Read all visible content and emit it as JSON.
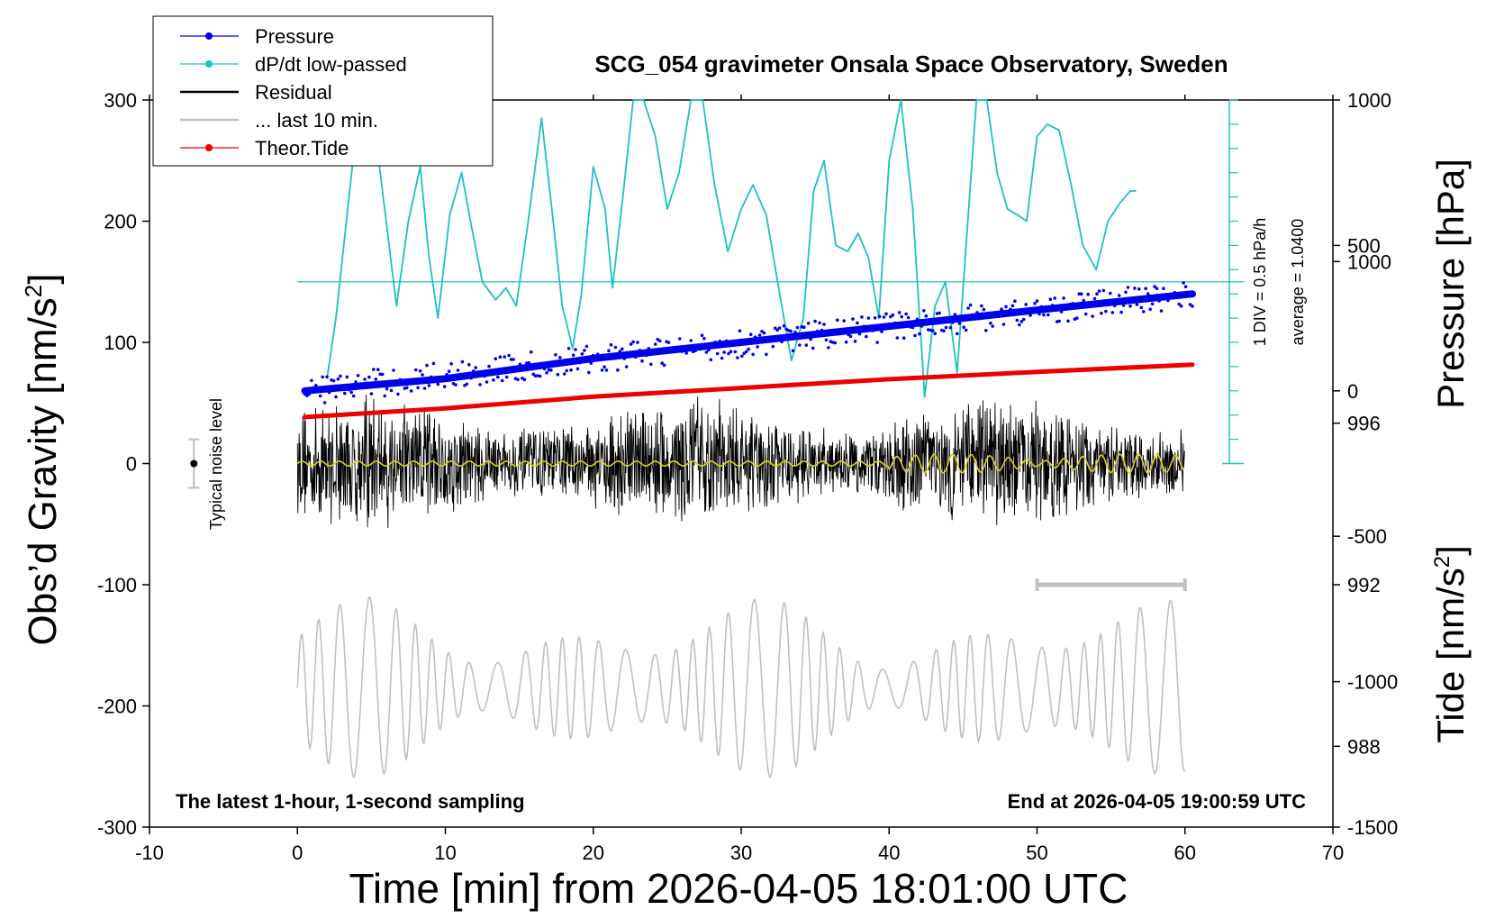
{
  "chart_data": {
    "type": "line",
    "title": "SCG_054 gravimeter Onsala Space Observatory, Sweden",
    "xlabel": "Time [min] from 2026-04-05 18:01:00 UTC",
    "ylabel_left_main": "Obs’d Gravity [nm/s",
    "ylabel_left_sup": "2",
    "ylabel_left_end": "]",
    "ylabel_right_top": "Pressure [hPa]",
    "ylabel_right_bottom_main": "Tide [nm/s",
    "ylabel_right_bottom_sup": "2",
    "ylabel_right_bottom_end": "]",
    "xlim": [
      -10,
      70
    ],
    "ylim": [
      -300,
      300
    ],
    "x_ticks": [
      "-10",
      "0",
      "10",
      "20",
      "30",
      "40",
      "50",
      "60",
      "70"
    ],
    "y_ticks_left": [
      "-300",
      "-200",
      "-100",
      "0",
      "100",
      "200",
      "300"
    ],
    "y_ticks_pressure": [
      "988",
      "992",
      "996",
      "1000"
    ],
    "y_ticks_tide": [
      "-1500",
      "-1000",
      "-500",
      "0",
      "500",
      "1000"
    ],
    "pressure_range_hpa": [
      986,
      1004
    ],
    "tide_range_nms2": [
      -1500,
      1000
    ],
    "bottom_left_note": "The latest 1-hour, 1-second sampling",
    "bottom_right_note": "End at 2026-04-05 19:00:59 UTC",
    "noise_label": "Typical noise level",
    "scale_note_1": "1 DIV = 0.5 hPa/h",
    "scale_note_2": "average = 1.0400",
    "legend": [
      {
        "label": "Pressure",
        "color": "#0000ee",
        "marker": "dot"
      },
      {
        "label": "dP/dt low-passed",
        "color": "#20c0c0",
        "marker": "dot"
      },
      {
        "label": "Residual",
        "color": "#000000",
        "marker": "line"
      },
      {
        "label": "... last 10 min.",
        "color": "#c0c0c0",
        "marker": "line"
      },
      {
        "label": "Theor.Tide",
        "color": "#ee0000",
        "marker": "dot"
      }
    ],
    "series": [
      {
        "name": "Pressure",
        "color": "#0000ee",
        "axis": "pressure",
        "x": [
          0.5,
          10,
          20,
          30,
          40,
          50,
          60.5
        ],
        "y": [
          996.8,
          997.1,
          997.6,
          998.0,
          998.4,
          998.8,
          999.2
        ]
      },
      {
        "name": "dP/dt low-passed",
        "color": "#20c0c0",
        "axis": "gravity",
        "x": [
          2,
          2.6,
          3.4,
          4.2,
          5,
          5.8,
          6.7,
          7.5,
          8.3,
          8.9,
          9.5,
          10.3,
          11.1,
          11.7,
          12.5,
          13.4,
          14.1,
          14.8,
          15.6,
          16.5,
          17.2,
          17.9,
          18.6,
          19.2,
          20,
          20.8,
          21.3,
          22,
          22.7,
          23.4,
          24.2,
          25,
          25.8,
          26.6,
          27.4,
          28.2,
          29.1,
          30,
          30.8,
          31.7,
          32.6,
          33.4,
          34.2,
          34.9,
          35.6,
          36.4,
          37.2,
          37.9,
          38.6,
          39.3,
          40,
          40.8,
          41.6,
          42.4,
          43.1,
          43.8,
          44.6,
          45.2,
          45.9,
          46.6,
          47.3,
          48,
          48.7,
          49.3,
          50,
          50.7,
          51.5,
          52.3,
          53.1,
          54,
          54.8,
          55.6,
          56.3,
          56.7
        ],
        "y": [
          70,
          120,
          210,
          320,
          330,
          220,
          130,
          200,
          245,
          170,
          120,
          205,
          240,
          200,
          150,
          135,
          145,
          130,
          200,
          285,
          210,
          130,
          95,
          140,
          245,
          210,
          145,
          220,
          330,
          340,
          270,
          210,
          240,
          310,
          330,
          230,
          175,
          210,
          230,
          205,
          140,
          85,
          120,
          225,
          250,
          180,
          175,
          190,
          170,
          120,
          250,
          330,
          210,
          55,
          130,
          150,
          75,
          180,
          320,
          300,
          240,
          210,
          205,
          200,
          270,
          280,
          275,
          230,
          180,
          160,
          200,
          215,
          225,
          225
        ]
      },
      {
        "name": "Residual",
        "color": "#000000",
        "axis": "gravity",
        "x": [
          0,
          60
        ],
        "y_amplitude": 60
      },
      {
        "name": "... last 10 min.",
        "color": "#c0c0c0",
        "axis": "gravity",
        "x": [
          0,
          60
        ],
        "y_center": -185,
        "y_amplitude": 75
      },
      {
        "name": "Theor.Tide",
        "color": "#ee0000",
        "axis": "tide",
        "x": [
          0.5,
          10,
          20,
          30,
          40,
          50,
          60.5
        ],
        "y": [
          -90,
          -60,
          -20,
          10,
          40,
          65,
          90
        ]
      }
    ],
    "noise_bar": {
      "x": -7,
      "y": 0,
      "half_range": 20
    },
    "gray_bar": {
      "x_from": 50,
      "x_to": 60,
      "y": -100
    }
  }
}
